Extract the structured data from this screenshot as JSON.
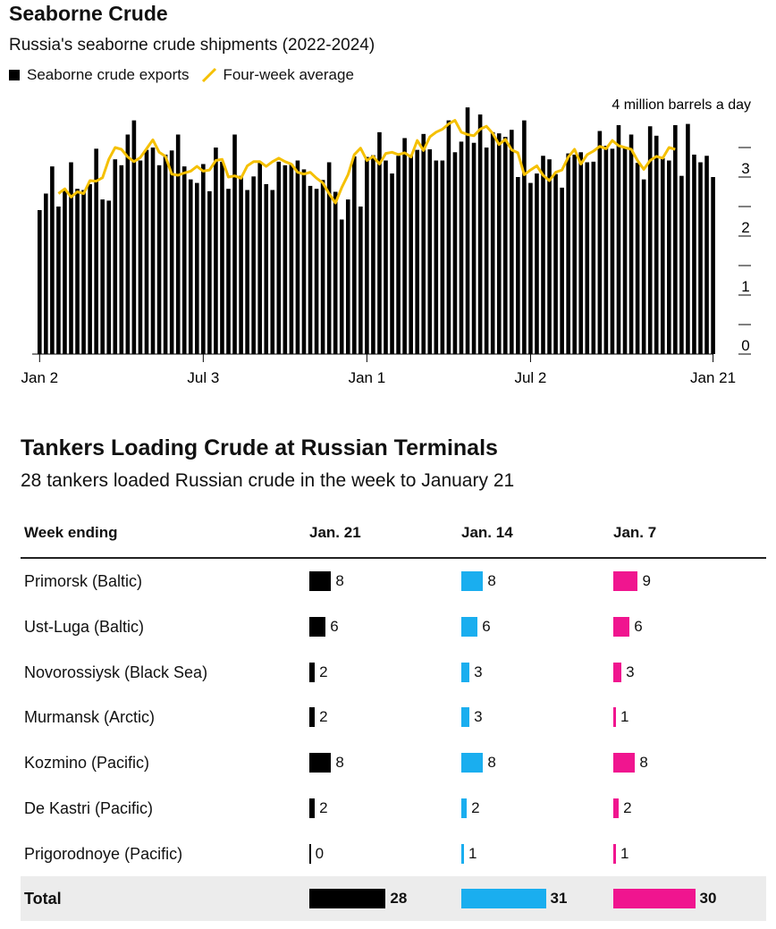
{
  "header": {
    "title": "Seaborne Crude",
    "subtitle": "Russia's seaborne crude shipments (2022-2024)",
    "legend_exports": "Seaborne crude exports",
    "legend_average": "Four-week average"
  },
  "colors": {
    "exports": "#000000",
    "average": "#f5c000",
    "jan21": "#000000",
    "jan14": "#1aaeef",
    "jan7": "#f0158f"
  },
  "chart_data": {
    "type": "bar",
    "title": "Seaborne Crude",
    "ylabel": "4 million barrels a day",
    "ylim": [
      0,
      4
    ],
    "yticks": [
      "0",
      "1",
      "2",
      "3"
    ],
    "xticks": [
      {
        "label": "Jan 2",
        "index": 0
      },
      {
        "label": "Jul 3",
        "index": 26
      },
      {
        "label": "Jan 1",
        "index": 52
      },
      {
        "label": "Jul 2",
        "index": 78
      },
      {
        "label": "Jan 21",
        "index": 107
      }
    ],
    "series": [
      {
        "name": "Seaborne crude exports",
        "type": "bar",
        "values": [
          2.44,
          2.72,
          3.18,
          2.5,
          2.78,
          3.25,
          2.8,
          2.78,
          2.88,
          3.48,
          2.62,
          2.6,
          3.3,
          3.2,
          3.72,
          3.96,
          3.28,
          3.46,
          3.5,
          3.2,
          3.38,
          3.45,
          3.72,
          3.18,
          2.96,
          2.9,
          3.22,
          2.76,
          3.5,
          3.26,
          2.8,
          3.72,
          3.02,
          2.78,
          3.01,
          3.24,
          2.88,
          2.78,
          3.26,
          3.2,
          3.22,
          3.28,
          3.13,
          2.85,
          2.8,
          2.95,
          3.25,
          2.75,
          2.28,
          2.62,
          3.35,
          2.5,
          3.34,
          3.37,
          3.76,
          3.28,
          3.06,
          3.36,
          3.66,
          3.38,
          3.46,
          3.73,
          3.47,
          3.28,
          3.28,
          3.96,
          3.42,
          3.6,
          4.18,
          3.58,
          4.06,
          3.5,
          3.76,
          3.74,
          3.68,
          3.8,
          3.0,
          3.96,
          2.9,
          3.06,
          3.36,
          3.3,
          3.05,
          2.82,
          3.4,
          3.38,
          3.42,
          3.25,
          3.26,
          3.78,
          3.53,
          3.48,
          3.88,
          3.49,
          3.72,
          3.24,
          2.96,
          3.86,
          3.7,
          3.32,
          3.28,
          3.88,
          3.02,
          3.9,
          3.38,
          3.25,
          3.36,
          3.0
        ]
      },
      {
        "name": "Four-week average",
        "type": "line",
        "start_index": 3,
        "values": [
          2.72,
          2.8,
          2.66,
          2.75,
          2.72,
          2.94,
          2.93,
          2.99,
          3.3,
          3.5,
          3.47,
          3.34,
          3.26,
          3.33,
          3.48,
          3.63,
          3.42,
          3.35,
          3.05,
          3.03,
          3.07,
          3.1,
          3.18,
          3.1,
          3.12,
          3.28,
          3.3,
          3.0,
          3.02,
          2.98,
          3.19,
          3.26,
          3.26,
          3.18,
          3.26,
          3.32,
          3.26,
          3.22,
          3.08,
          3.05,
          3.08,
          2.98,
          2.9,
          2.72,
          2.56,
          2.82,
          3.04,
          3.38,
          3.49,
          3.28,
          3.35,
          3.22,
          3.4,
          3.42,
          3.38,
          3.41,
          3.34,
          3.62,
          3.45,
          3.68,
          3.76,
          3.81,
          3.9,
          3.96,
          3.76,
          3.72,
          3.7,
          3.81,
          3.86,
          3.74,
          3.55,
          3.64,
          3.46,
          3.41,
          3.04,
          3.12,
          3.19,
          3.03,
          2.94,
          3.08,
          3.12,
          3.34,
          3.47,
          3.22,
          3.38,
          3.44,
          3.52,
          3.48,
          3.62,
          3.53,
          3.5,
          3.47,
          3.28,
          3.13,
          3.28,
          3.35,
          3.32,
          3.5,
          3.47
        ]
      }
    ]
  },
  "table": {
    "title": "Tankers Loading Crude at Russian Terminals",
    "subtitle": "28 tankers loaded Russian crude in the week to January 21",
    "headers": [
      "Week ending",
      "Jan. 21",
      "Jan. 14",
      "Jan. 7"
    ],
    "rows": [
      {
        "name": "Primorsk (Baltic)",
        "values": [
          "8",
          "8",
          "9"
        ]
      },
      {
        "name": "Ust-Luga (Baltic)",
        "values": [
          "6",
          "6",
          "6"
        ]
      },
      {
        "name": "Novorossiysk (Black Sea)",
        "values": [
          "2",
          "3",
          "3"
        ]
      },
      {
        "name": "Murmansk (Arctic)",
        "values": [
          "2",
          "3",
          "1"
        ]
      },
      {
        "name": "Kozmino (Pacific)",
        "values": [
          "8",
          "8",
          "8"
        ]
      },
      {
        "name": "De Kastri (Pacific)",
        "values": [
          "2",
          "2",
          "2"
        ]
      },
      {
        "name": "Prigorodnoye (Pacific)",
        "values": [
          "0",
          "1",
          "1"
        ]
      }
    ],
    "total": {
      "name": "Total",
      "values": [
        "28",
        "31",
        "30"
      ]
    }
  }
}
